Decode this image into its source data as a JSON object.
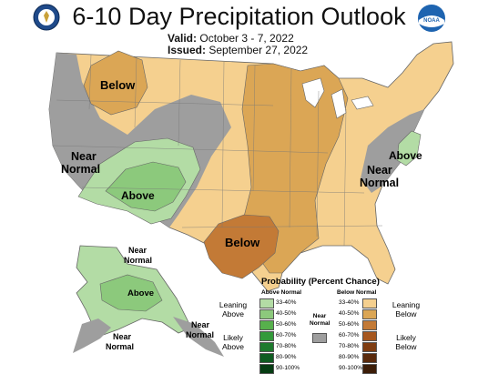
{
  "header": {
    "title": "6-10 Day Precipitation Outlook",
    "valid_label": "Valid:",
    "valid_value": "October 3 - 7, 2022",
    "issued_label": "Issued:",
    "issued_value": "September 27, 2022"
  },
  "logos": {
    "left": "department-seal",
    "right": "noaa-logo",
    "right_text": "NOAA"
  },
  "map_labels": {
    "below_north": "Below",
    "near_normal_west_1": "Near",
    "near_normal_west_2": "Normal",
    "above_southwest": "Above",
    "below_texas": "Below",
    "near_normal_east_1": "Near",
    "near_normal_east_2": "Normal",
    "above_east": "Above",
    "alaska_near_1": "Near",
    "alaska_near_2": "Normal",
    "alaska_above": "Above",
    "alaska_near_sw_1": "Near",
    "alaska_near_sw_2": "Normal",
    "alaska_near_se_1": "Near",
    "alaska_near_se_2": "Normal"
  },
  "legend": {
    "title": "Probability (Percent Chance)",
    "above_header": "Above Normal",
    "below_header": "Below Normal",
    "near_header_1": "Near",
    "near_header_2": "Normal",
    "leaning_above_1": "Leaning",
    "leaning_above_2": "Above",
    "likely_above_1": "Likely",
    "likely_above_2": "Above",
    "leaning_below_1": "Leaning",
    "leaning_below_2": "Below",
    "likely_below_1": "Likely",
    "likely_below_2": "Below",
    "above_ranges": [
      "33-40%",
      "40-50%",
      "50-60%",
      "60-70%",
      "70-80%",
      "80-90%",
      "90-100%"
    ],
    "below_ranges": [
      "33-40%",
      "40-50%",
      "50-60%",
      "60-70%",
      "70-80%",
      "80-90%",
      "90-100%"
    ],
    "above_colors": [
      "#b3dca5",
      "#8cc97c",
      "#57b04c",
      "#339a3a",
      "#1d7a2d",
      "#0f5c21",
      "#063d13"
    ],
    "below_colors": [
      "#f5d08f",
      "#dba655",
      "#c37a36",
      "#a6571f",
      "#7f3d12",
      "#5a2a0c",
      "#3c1d08"
    ],
    "near_color": "#9e9e9e"
  },
  "category_colors": {
    "below_leaning": "#f5d08f",
    "below_4050": "#dba655",
    "below_5060": "#c37a36",
    "above_3340": "#b3dca5",
    "above_4050": "#8cc97c",
    "near": "#9e9e9e"
  }
}
